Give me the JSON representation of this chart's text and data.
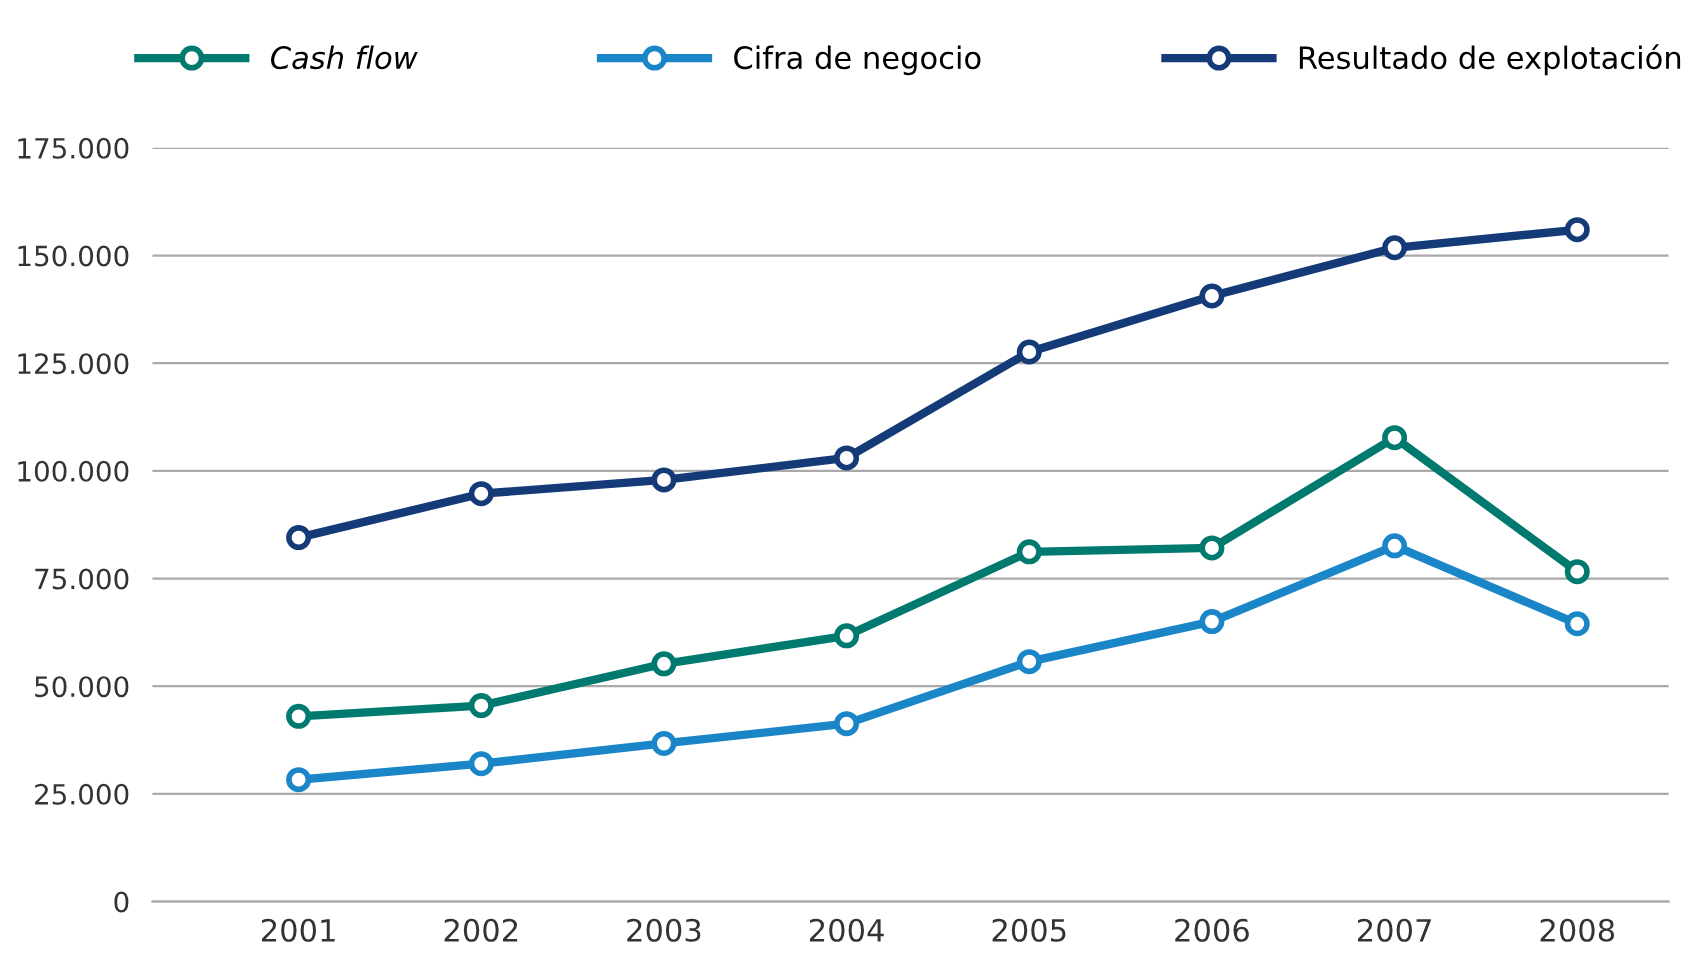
{
  "chart_data": {
    "type": "line",
    "categories": [
      "2001",
      "2002",
      "2003",
      "2004",
      "2005",
      "2006",
      "2007",
      "2008"
    ],
    "series": [
      {
        "name": "Cash flow",
        "color": "#007a6e",
        "values": [
          43000,
          45500,
          55200,
          61700,
          81200,
          82100,
          107700,
          76600
        ]
      },
      {
        "name": "Cifra de negocio",
        "color": "#1a86c8",
        "values": [
          28300,
          32000,
          36700,
          41300,
          55700,
          65000,
          82600,
          64500
        ]
      },
      {
        "name": "Resultado de explotación",
        "color": "#143b78",
        "values": [
          84500,
          94700,
          97900,
          103000,
          127600,
          140600,
          151800,
          156000
        ]
      }
    ],
    "ylim": [
      0,
      175000
    ],
    "yticks": [
      0,
      {
        "value": 25000,
        "label": "25.000"
      },
      {
        "value": 50000,
        "label": "50.000"
      },
      {
        "value": 75000,
        "label": "75.000"
      },
      {
        "value": 100000,
        "label": "100.000"
      },
      {
        "value": 125000,
        "label": "125.000"
      },
      {
        "value": 150000,
        "label": "150.000"
      },
      {
        "value": 175000,
        "label": "175.000"
      }
    ],
    "grid": "y",
    "legend": "top",
    "marker": "circle",
    "line_style": "solid"
  }
}
